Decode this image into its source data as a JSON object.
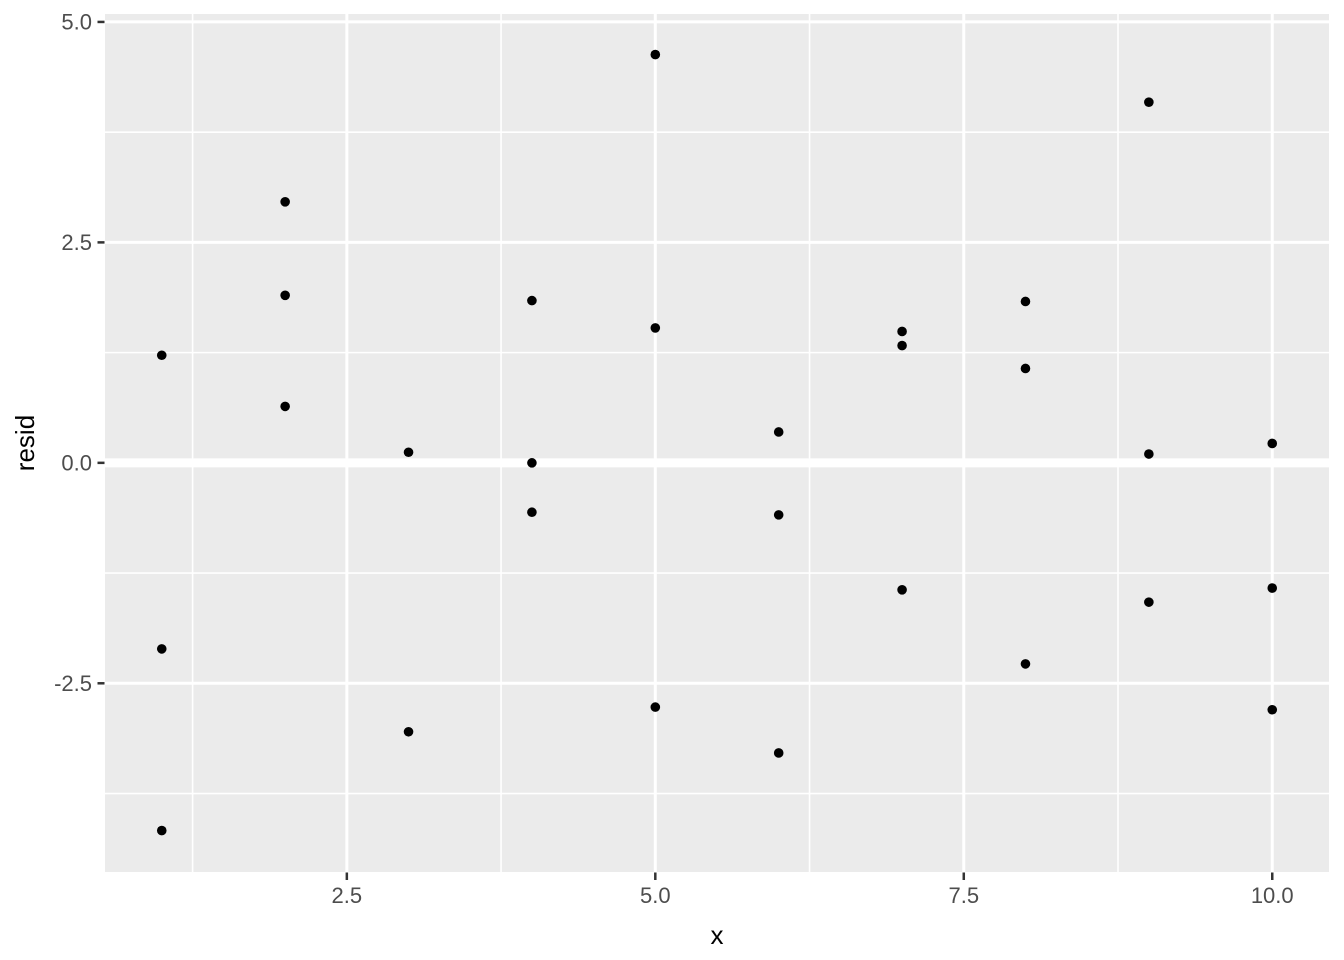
{
  "figure": {
    "background": "#FFFFFF",
    "panel_background": "#EBEBEB",
    "grid_color": "#FFFFFF",
    "point_color": "#000000",
    "tick_label_color": "#4D4D4D",
    "axis_title_color": "#000000",
    "tick_mark_color": "#333333"
  },
  "chart_data": {
    "type": "scatter",
    "title": "",
    "xlabel": "x",
    "ylabel": "resid",
    "legend_position": "none",
    "grid": "major+minor",
    "xlim": [
      0.54,
      10.46
    ],
    "ylim": [
      -4.64,
      5.09
    ],
    "x_major_ticks": {
      "values": [
        2.5,
        5.0,
        7.5,
        10.0
      ],
      "labels": [
        "2.5",
        "5.0",
        "7.5",
        "10.0"
      ]
    },
    "y_major_ticks": {
      "values": [
        -2.5,
        0.0,
        2.5,
        5.0
      ],
      "labels": [
        "-2.5",
        "0.0",
        "2.5",
        "5.0"
      ]
    },
    "x_minor_ticks": [
      1.25,
      3.75,
      6.25,
      8.75
    ],
    "y_minor_ticks": [
      -3.75,
      -1.25,
      1.25,
      3.75
    ],
    "zero_reference_line_y": 0,
    "point_radius_px": 4.8,
    "points": [
      {
        "x": 1,
        "resid": 1.22
      },
      {
        "x": 1,
        "resid": -2.11
      },
      {
        "x": 1,
        "resid": -4.17
      },
      {
        "x": 2,
        "resid": 2.96
      },
      {
        "x": 2,
        "resid": 1.9
      },
      {
        "x": 2,
        "resid": 0.64
      },
      {
        "x": 3,
        "resid": 0.12
      },
      {
        "x": 3,
        "resid": -3.05
      },
      {
        "x": 4,
        "resid": 1.84
      },
      {
        "x": 4,
        "resid": 0.0
      },
      {
        "x": 4,
        "resid": -0.56
      },
      {
        "x": 5,
        "resid": 4.63
      },
      {
        "x": 5,
        "resid": 1.53
      },
      {
        "x": 5,
        "resid": -2.77
      },
      {
        "x": 6,
        "resid": 0.35
      },
      {
        "x": 6,
        "resid": -0.59
      },
      {
        "x": 6,
        "resid": -3.29
      },
      {
        "x": 7,
        "resid": 1.49
      },
      {
        "x": 7,
        "resid": 1.33
      },
      {
        "x": 7,
        "resid": -1.44
      },
      {
        "x": 8,
        "resid": 1.83
      },
      {
        "x": 8,
        "resid": 1.07
      },
      {
        "x": 8,
        "resid": -2.28
      },
      {
        "x": 9,
        "resid": 4.09
      },
      {
        "x": 9,
        "resid": 0.1
      },
      {
        "x": 9,
        "resid": -1.58
      },
      {
        "x": 10,
        "resid": 0.22
      },
      {
        "x": 10,
        "resid": -1.42
      },
      {
        "x": 10,
        "resid": -2.8
      }
    ]
  }
}
